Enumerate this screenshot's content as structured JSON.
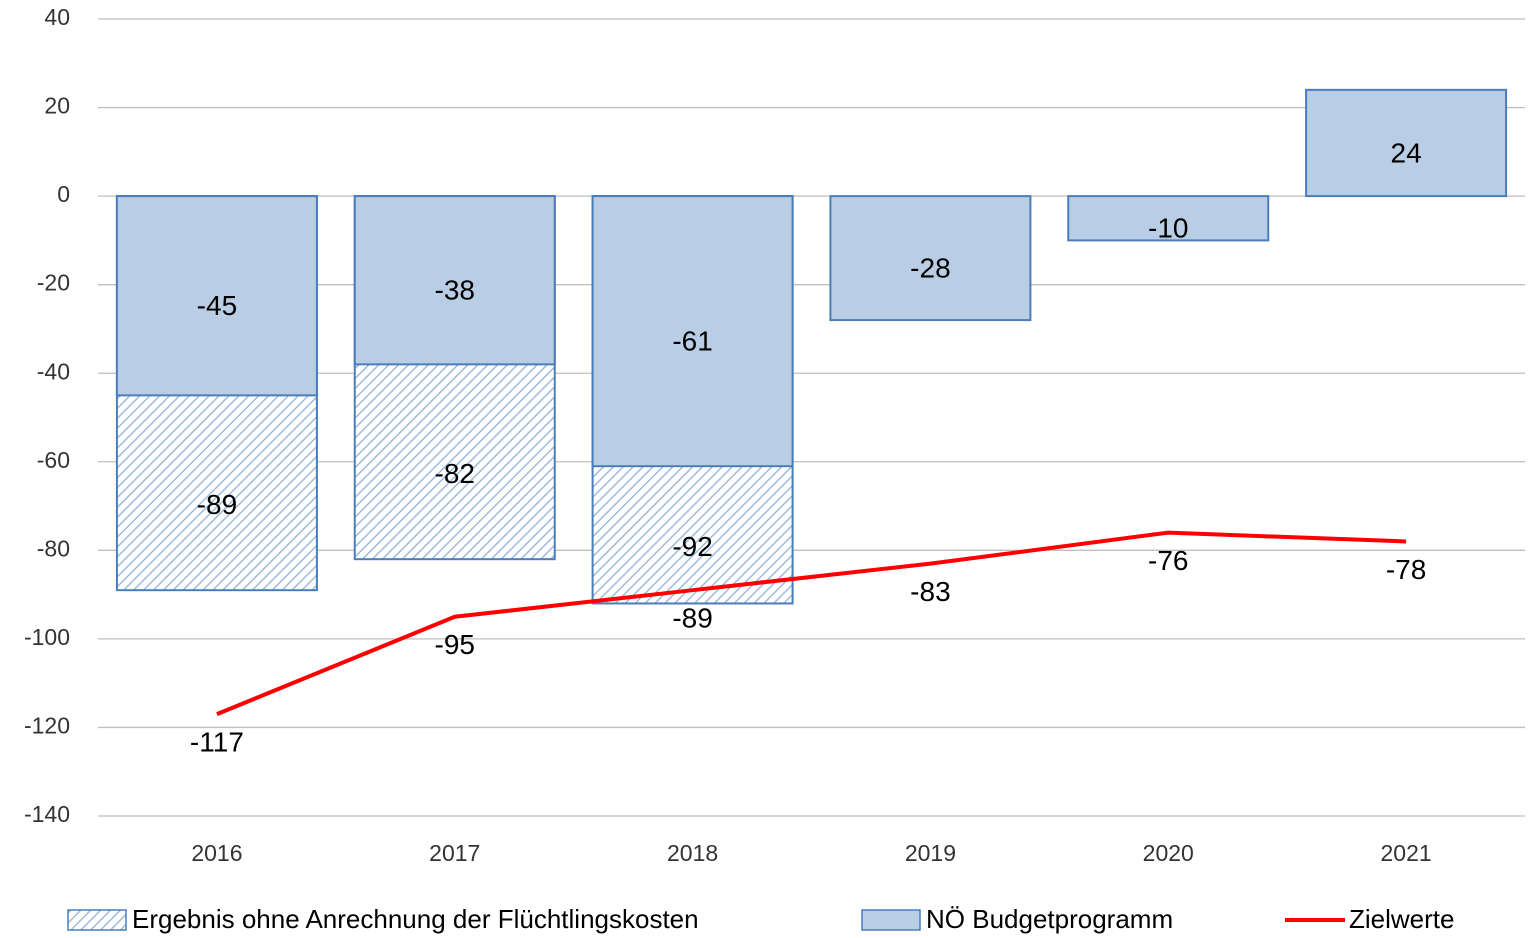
{
  "chart_data": {
    "type": "bar",
    "categories": [
      "2016",
      "2017",
      "2018",
      "2019",
      "2020",
      "2021"
    ],
    "series": [
      {
        "name": "Ergebnis ohne Anrechnung der Flüchtlingskosten",
        "type": "hatched-bar",
        "color": "#9fbbdf",
        "values": [
          -89,
          -82,
          -92,
          null,
          null,
          null
        ]
      },
      {
        "name": "NÖ Budgetprogramm",
        "type": "bar",
        "color": "#b9cde5",
        "values": [
          -45,
          -38,
          -61,
          -28,
          -10,
          24
        ]
      },
      {
        "name": "Zielwerte",
        "type": "line",
        "color": "#ff0000",
        "values": [
          -117,
          -95,
          -89,
          -83,
          -76,
          -78
        ]
      }
    ],
    "ylim": [
      -140,
      40
    ],
    "yticks": [
      40,
      20,
      0,
      -20,
      -40,
      -60,
      -80,
      -100,
      -120,
      -140
    ],
    "grid": true,
    "legend": "bottom"
  }
}
